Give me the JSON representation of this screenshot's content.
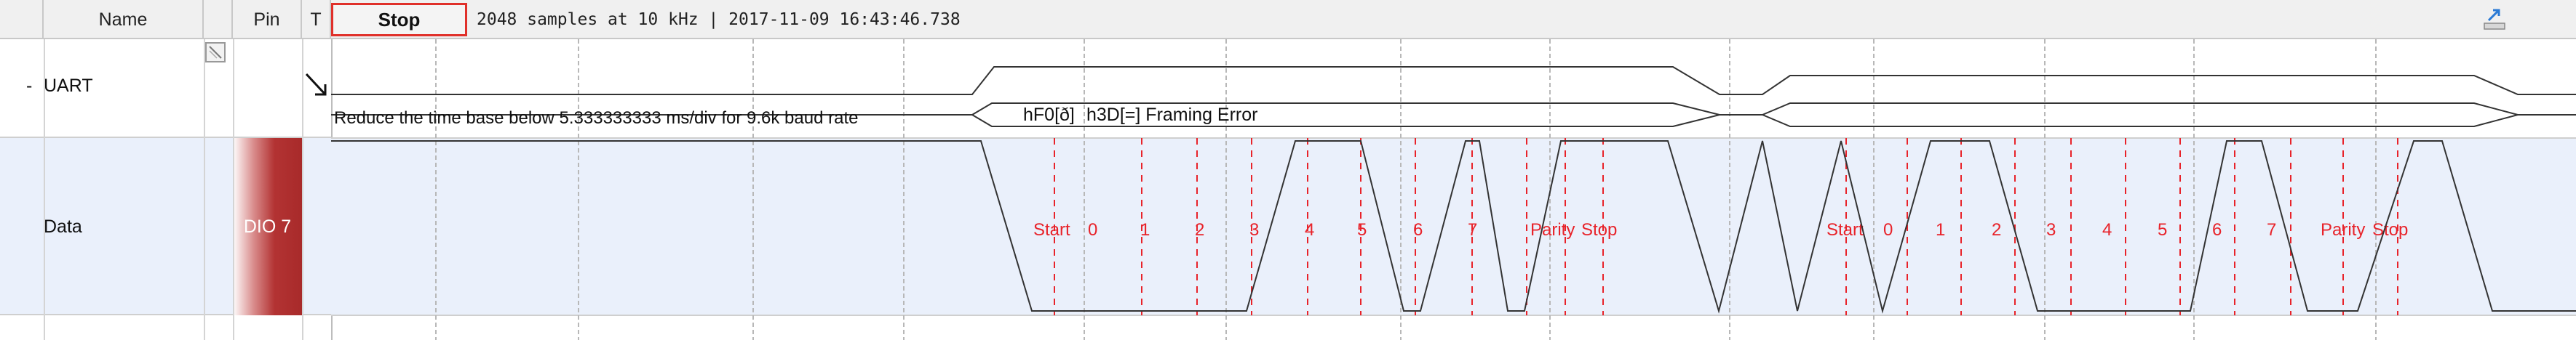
{
  "columns": {
    "name": "Name",
    "pin": "Pin",
    "trigger": "T"
  },
  "toolbar": {
    "stop_label": "Stop",
    "status": "2048 samples at 10 kHz | 2017-11-09 16:43:46.738"
  },
  "channels": {
    "uart": {
      "collapse": "-",
      "name": "UART"
    },
    "data": {
      "name": "Data",
      "pin": "DIO  7"
    }
  },
  "protocol": {
    "warning": "Reduce the time base below 5.333333333 ms/div for 9.6k baud rate",
    "frames": [
      "hF0[ð]",
      "h3D[=] Framing Error"
    ],
    "bit_labels": [
      "Start",
      "0",
      "1",
      "2",
      "3",
      "4",
      "5",
      "6",
      "7",
      "Parity",
      "Stop"
    ]
  },
  "icons": {
    "export": "export-icon",
    "trigger_arrow": "arrow-down-right-icon",
    "checkbox": "channel-toggle-icon"
  },
  "colors": {
    "stop_border": "#e0302a",
    "bit_label": "#e8232a",
    "pin_badge": "#a82a2a",
    "data_row": "#eaf0fb"
  }
}
